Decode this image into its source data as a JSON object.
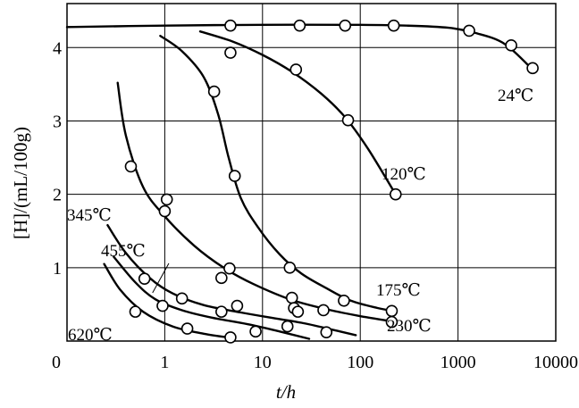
{
  "chart_data": {
    "type": "scatter",
    "title": "",
    "xlabel": "t/h",
    "ylabel": "[H]/(mL/100g)",
    "x_scale": "log",
    "xlim": [
      0.1,
      10000
    ],
    "ylim": [
      0,
      4.6
    ],
    "x_ticks": [
      {
        "value": 0.1,
        "label": "0"
      },
      {
        "value": 1,
        "label": "1"
      },
      {
        "value": 10,
        "label": "10"
      },
      {
        "value": 100,
        "label": "100"
      },
      {
        "value": 1000,
        "label": "1000"
      },
      {
        "value": 10000,
        "label": "10000"
      }
    ],
    "y_ticks": [
      {
        "value": 1,
        "label": "1"
      },
      {
        "value": 2,
        "label": "2"
      },
      {
        "value": 3,
        "label": "3"
      },
      {
        "value": 4,
        "label": "4"
      }
    ],
    "grid": true,
    "series": [
      {
        "name": "24℃",
        "points": [
          [
            4.7,
            4.3
          ],
          [
            24,
            4.3
          ],
          [
            70,
            4.3
          ],
          [
            220,
            4.3
          ],
          [
            1300,
            4.23
          ],
          [
            3500,
            4.03
          ],
          [
            5800,
            3.72
          ]
        ],
        "curve": [
          [
            0.1,
            4.28
          ],
          [
            1,
            4.3
          ],
          [
            10,
            4.31
          ],
          [
            100,
            4.31
          ],
          [
            300,
            4.3
          ],
          [
            800,
            4.27
          ],
          [
            1500,
            4.2
          ],
          [
            3000,
            4.05
          ],
          [
            6000,
            3.68
          ]
        ]
      },
      {
        "name": "120℃",
        "points": [
          [
            4.7,
            3.93
          ],
          [
            22,
            3.7
          ],
          [
            75,
            3.01
          ],
          [
            230,
            2.0
          ]
        ],
        "curve": [
          [
            2.3,
            4.22
          ],
          [
            5,
            4.08
          ],
          [
            10,
            3.9
          ],
          [
            20,
            3.67
          ],
          [
            40,
            3.37
          ],
          [
            70,
            3.05
          ],
          [
            120,
            2.62
          ],
          [
            230,
            2.0
          ]
        ]
      },
      {
        "name": "175℃",
        "points": [
          [
            3.2,
            3.4
          ],
          [
            5.2,
            2.25
          ],
          [
            19,
            1.0
          ],
          [
            68,
            0.55
          ],
          [
            210,
            0.41
          ]
        ],
        "curve": [
          [
            0.9,
            4.16
          ],
          [
            1.5,
            3.95
          ],
          [
            2.5,
            3.6
          ],
          [
            3.5,
            3.1
          ],
          [
            4.5,
            2.5
          ],
          [
            6,
            1.95
          ],
          [
            9,
            1.55
          ],
          [
            15,
            1.18
          ],
          [
            25,
            0.92
          ],
          [
            45,
            0.72
          ],
          [
            80,
            0.55
          ],
          [
            150,
            0.45
          ],
          [
            220,
            0.41
          ]
        ]
      },
      {
        "name": "230℃",
        "points": [
          [
            0.45,
            2.38
          ],
          [
            1.05,
            1.93
          ],
          [
            1,
            1.77
          ],
          [
            4.6,
            0.99
          ],
          [
            3.8,
            0.86
          ],
          [
            20,
            0.59
          ],
          [
            21,
            0.45
          ],
          [
            42,
            0.42
          ],
          [
            210,
            0.26
          ]
        ],
        "curve": [
          [
            0.33,
            3.52
          ],
          [
            0.4,
            2.8
          ],
          [
            0.6,
            2.1
          ],
          [
            1,
            1.7
          ],
          [
            2,
            1.3
          ],
          [
            4,
            1.0
          ],
          [
            8,
            0.78
          ],
          [
            20,
            0.56
          ],
          [
            50,
            0.42
          ],
          [
            110,
            0.33
          ],
          [
            210,
            0.27
          ]
        ]
      },
      {
        "name": "345℃",
        "points": [
          [
            0.62,
            0.85
          ],
          [
            1.5,
            0.58
          ],
          [
            3.8,
            0.4
          ],
          [
            5.5,
            0.48
          ],
          [
            23,
            0.4
          ],
          [
            45,
            0.12
          ]
        ],
        "curve": [
          [
            0.26,
            1.58
          ],
          [
            0.4,
            1.2
          ],
          [
            0.7,
            0.86
          ],
          [
            1.2,
            0.65
          ],
          [
            2.5,
            0.49
          ],
          [
            6,
            0.39
          ],
          [
            12,
            0.32
          ],
          [
            25,
            0.25
          ],
          [
            50,
            0.16
          ],
          [
            90,
            0.08
          ]
        ]
      },
      {
        "name": "455℃",
        "points": [
          [
            0.95,
            0.48
          ],
          [
            18,
            0.2
          ],
          [
            8.5,
            0.13
          ]
        ],
        "curve": [
          [
            0.3,
            1.15
          ],
          [
            0.5,
            0.8
          ],
          [
            0.8,
            0.57
          ],
          [
            1.5,
            0.42
          ],
          [
            3,
            0.32
          ],
          [
            7,
            0.23
          ],
          [
            15,
            0.13
          ],
          [
            30,
            0.03
          ]
        ]
      },
      {
        "name": "620℃",
        "points": [
          [
            0.5,
            0.4
          ],
          [
            1.7,
            0.17
          ],
          [
            4.7,
            0.05
          ]
        ],
        "curve": [
          [
            0.24,
            1.05
          ],
          [
            0.35,
            0.7
          ],
          [
            0.6,
            0.4
          ],
          [
            1.2,
            0.2
          ],
          [
            2.5,
            0.1
          ],
          [
            5,
            0.04
          ]
        ]
      }
    ],
    "annotations": [
      {
        "text": "24℃",
        "series": "24℃"
      },
      {
        "text": "120℃",
        "series": "120℃"
      },
      {
        "text": "175℃",
        "series": "175℃"
      },
      {
        "text": "230℃",
        "series": "230℃"
      },
      {
        "text": "345℃",
        "series": "345℃"
      },
      {
        "text": "455℃",
        "series": "455℃"
      },
      {
        "text": "620℃",
        "series": "620℃"
      }
    ]
  }
}
